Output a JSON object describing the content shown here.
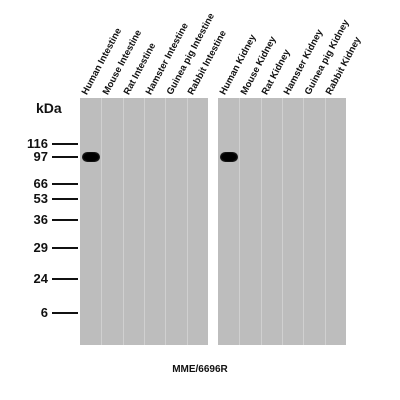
{
  "y_axis_unit": "kDa",
  "markers": [
    "116",
    "97",
    "66",
    "53",
    "36",
    "29",
    "24",
    "6"
  ],
  "lane_groups": [
    {
      "lanes": [
        "Human Intestine",
        "Mouse Intestine",
        "Rat Intestine",
        "Hamster Intestine",
        "Guinea pig Intestine",
        "Rabbit Intestine"
      ],
      "band_lanes": [
        0
      ]
    },
    {
      "lanes": [
        "Human Kidney",
        "Mouse Kidney",
        "Rat Kidney",
        "Hamster Kidney",
        "Guinea pig Kidney",
        "Rabbit Kidney"
      ],
      "band_lanes": [
        0
      ]
    }
  ],
  "band_marker": "97",
  "caption": "MME/6696R"
}
